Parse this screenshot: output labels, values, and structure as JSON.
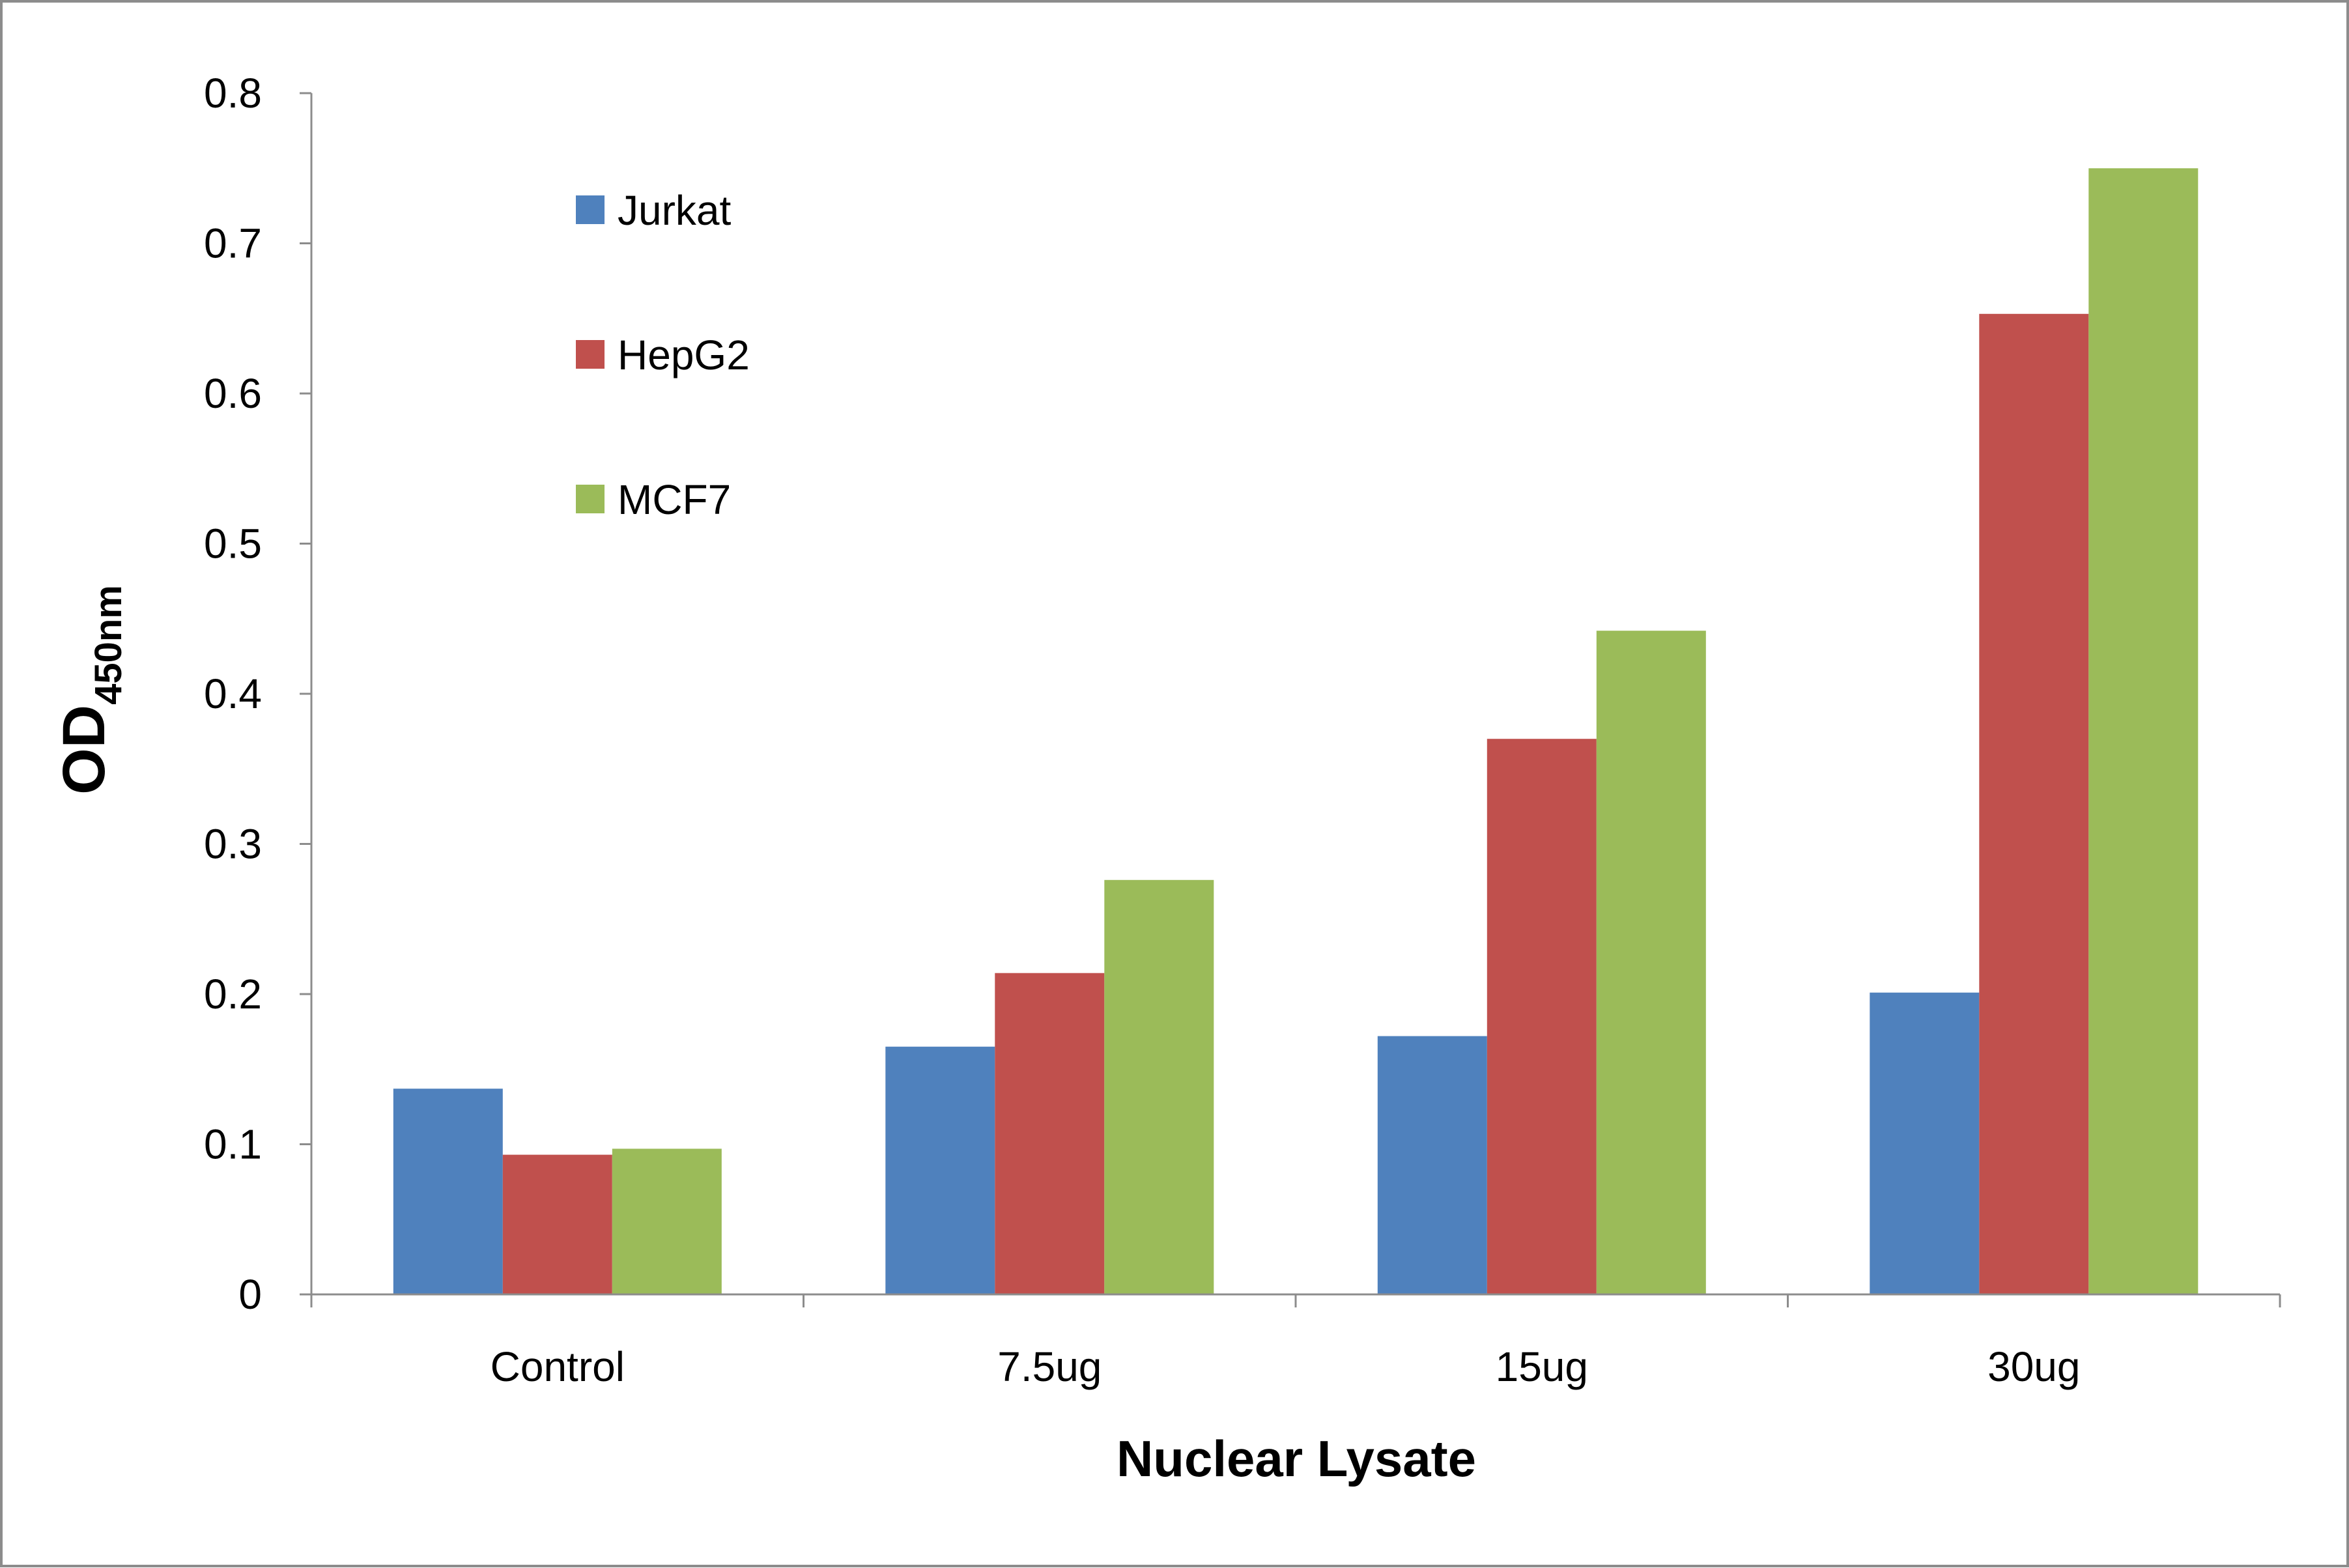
{
  "chart_data": {
    "type": "bar",
    "categories": [
      "Control",
      "7.5ug",
      "15ug",
      "30ug"
    ],
    "series": [
      {
        "name": "Jurkat",
        "color": "#4f81bd",
        "values": [
          0.137,
          0.165,
          0.172,
          0.201
        ]
      },
      {
        "name": "HepG2",
        "color": "#c0504d",
        "values": [
          0.093,
          0.214,
          0.37,
          0.653
        ]
      },
      {
        "name": "MCF7",
        "color": "#9bbb59",
        "values": [
          0.097,
          0.276,
          0.442,
          0.75
        ]
      }
    ],
    "yticks": [
      "0",
      "0.1",
      "0.2",
      "0.3",
      "0.4",
      "0.5",
      "0.6",
      "0.7",
      "0.8"
    ],
    "ylim": [
      0,
      0.8
    ],
    "xlabel": "Nuclear Lysate",
    "ylabel_main": "OD",
    "ylabel_sub": "450nm",
    "legend_position": "top-left",
    "grid": false
  }
}
